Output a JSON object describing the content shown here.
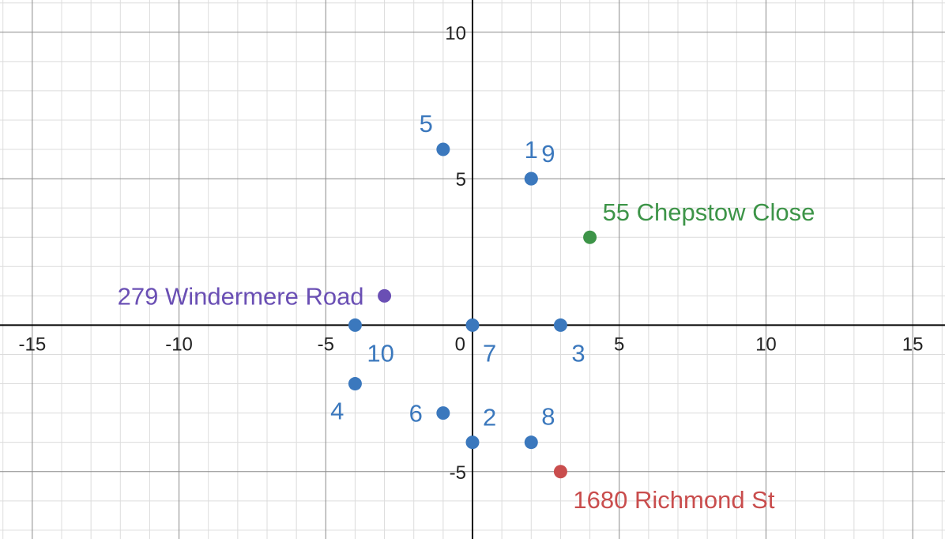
{
  "chart_data": {
    "type": "scatter",
    "title": "",
    "xlabel": "",
    "ylabel": "",
    "xlim": [
      -16.1,
      16.1
    ],
    "ylim": [
      -7.3,
      11.1
    ],
    "grid": true,
    "minor_grid": true,
    "origin_label": "0",
    "x_ticks": [
      {
        "value": -15,
        "label": "-15"
      },
      {
        "value": -10,
        "label": "-10"
      },
      {
        "value": -5,
        "label": "-5"
      },
      {
        "value": 5,
        "label": "5"
      },
      {
        "value": 10,
        "label": "10"
      },
      {
        "value": 15,
        "label": "15"
      }
    ],
    "y_ticks": [
      {
        "value": 10,
        "label": "10"
      },
      {
        "value": 5,
        "label": "5"
      },
      {
        "value": -5,
        "label": "-5"
      }
    ],
    "series": [
      {
        "color": "#3b78bd",
        "points": [
          {
            "x": 2,
            "y": 5,
            "label": "1"
          },
          {
            "x": 0,
            "y": -4,
            "label": "2"
          },
          {
            "x": 3,
            "y": 0,
            "label": "3"
          },
          {
            "x": -4,
            "y": -2,
            "label": "4"
          },
          {
            "x": -1,
            "y": 6,
            "label": "5"
          },
          {
            "x": -1,
            "y": -3,
            "label": "6"
          },
          {
            "x": 0,
            "y": 0,
            "label": "7"
          },
          {
            "x": 2,
            "y": -4,
            "label": "8"
          },
          {
            "x": 2,
            "y": 5,
            "label": "9"
          },
          {
            "x": -4,
            "y": 0,
            "label": "10"
          }
        ]
      },
      {
        "color": "#3d9448",
        "points": [
          {
            "x": 4,
            "y": 3,
            "label": "55 Chepstow Close"
          }
        ]
      },
      {
        "color": "#6a4fb4",
        "points": [
          {
            "x": -3,
            "y": 1,
            "label": "279 Windermere Road"
          }
        ]
      },
      {
        "color": "#c94d4d",
        "points": [
          {
            "x": 3,
            "y": -5,
            "label": "1680 Richmond St"
          }
        ]
      }
    ]
  }
}
